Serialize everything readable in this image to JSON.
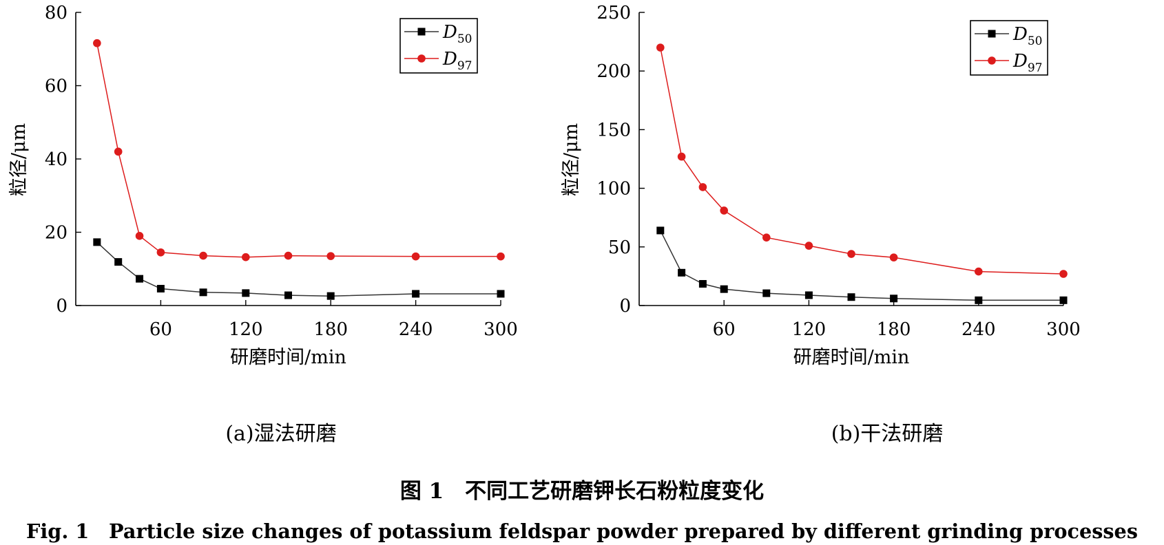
{
  "chart_data": [
    {
      "type": "line",
      "caption": "(a)湿法研磨",
      "xlabel": "研磨时间/min",
      "ylabel": "粒径/μm",
      "xlim": [
        0,
        300
      ],
      "ylim": [
        0,
        80
      ],
      "xticks": [
        60,
        120,
        180,
        240,
        300
      ],
      "yticks": [
        0,
        20,
        40,
        60,
        80
      ],
      "legend_position": "top-right",
      "x": [
        15,
        30,
        45,
        60,
        90,
        120,
        150,
        180,
        240,
        300
      ],
      "series": [
        {
          "name": "D",
          "sub": "50",
          "marker": "square",
          "color": "#000000",
          "values": [
            17.3,
            11.9,
            7.3,
            4.6,
            3.6,
            3.4,
            2.8,
            2.6,
            3.2,
            3.2
          ]
        },
        {
          "name": "D",
          "sub": "97",
          "marker": "circle",
          "color": "#dd1c1c",
          "values": [
            71.6,
            42.0,
            19.0,
            14.5,
            13.6,
            13.2,
            13.6,
            13.5,
            13.4,
            13.4
          ]
        }
      ]
    },
    {
      "type": "line",
      "caption": "(b)干法研磨",
      "xlabel": "研磨时间/min",
      "ylabel": "粒径/μm",
      "xlim": [
        0,
        300
      ],
      "ylim": [
        0,
        250
      ],
      "xticks": [
        60,
        120,
        180,
        240,
        300
      ],
      "yticks": [
        0,
        50,
        100,
        150,
        200,
        250
      ],
      "legend_position": "top-right",
      "x": [
        15,
        30,
        45,
        60,
        90,
        120,
        150,
        180,
        240,
        300
      ],
      "series": [
        {
          "name": "D",
          "sub": "50",
          "marker": "square",
          "color": "#000000",
          "values": [
            64.0,
            28.0,
            18.5,
            14.0,
            10.5,
            8.8,
            7.2,
            6.0,
            4.5,
            4.5
          ]
        },
        {
          "name": "D",
          "sub": "97",
          "marker": "circle",
          "color": "#dd1c1c",
          "values": [
            220.0,
            127.0,
            101.0,
            81.0,
            58.0,
            51.0,
            44.0,
            41.0,
            29.0,
            27.0
          ]
        }
      ]
    }
  ],
  "figure": {
    "title_cn": "图 1　不同工艺研磨钾长石粉粒度变化",
    "title_en": "Fig. 1　Particle size changes of potassium feldspar powder prepared by different grinding processes"
  }
}
